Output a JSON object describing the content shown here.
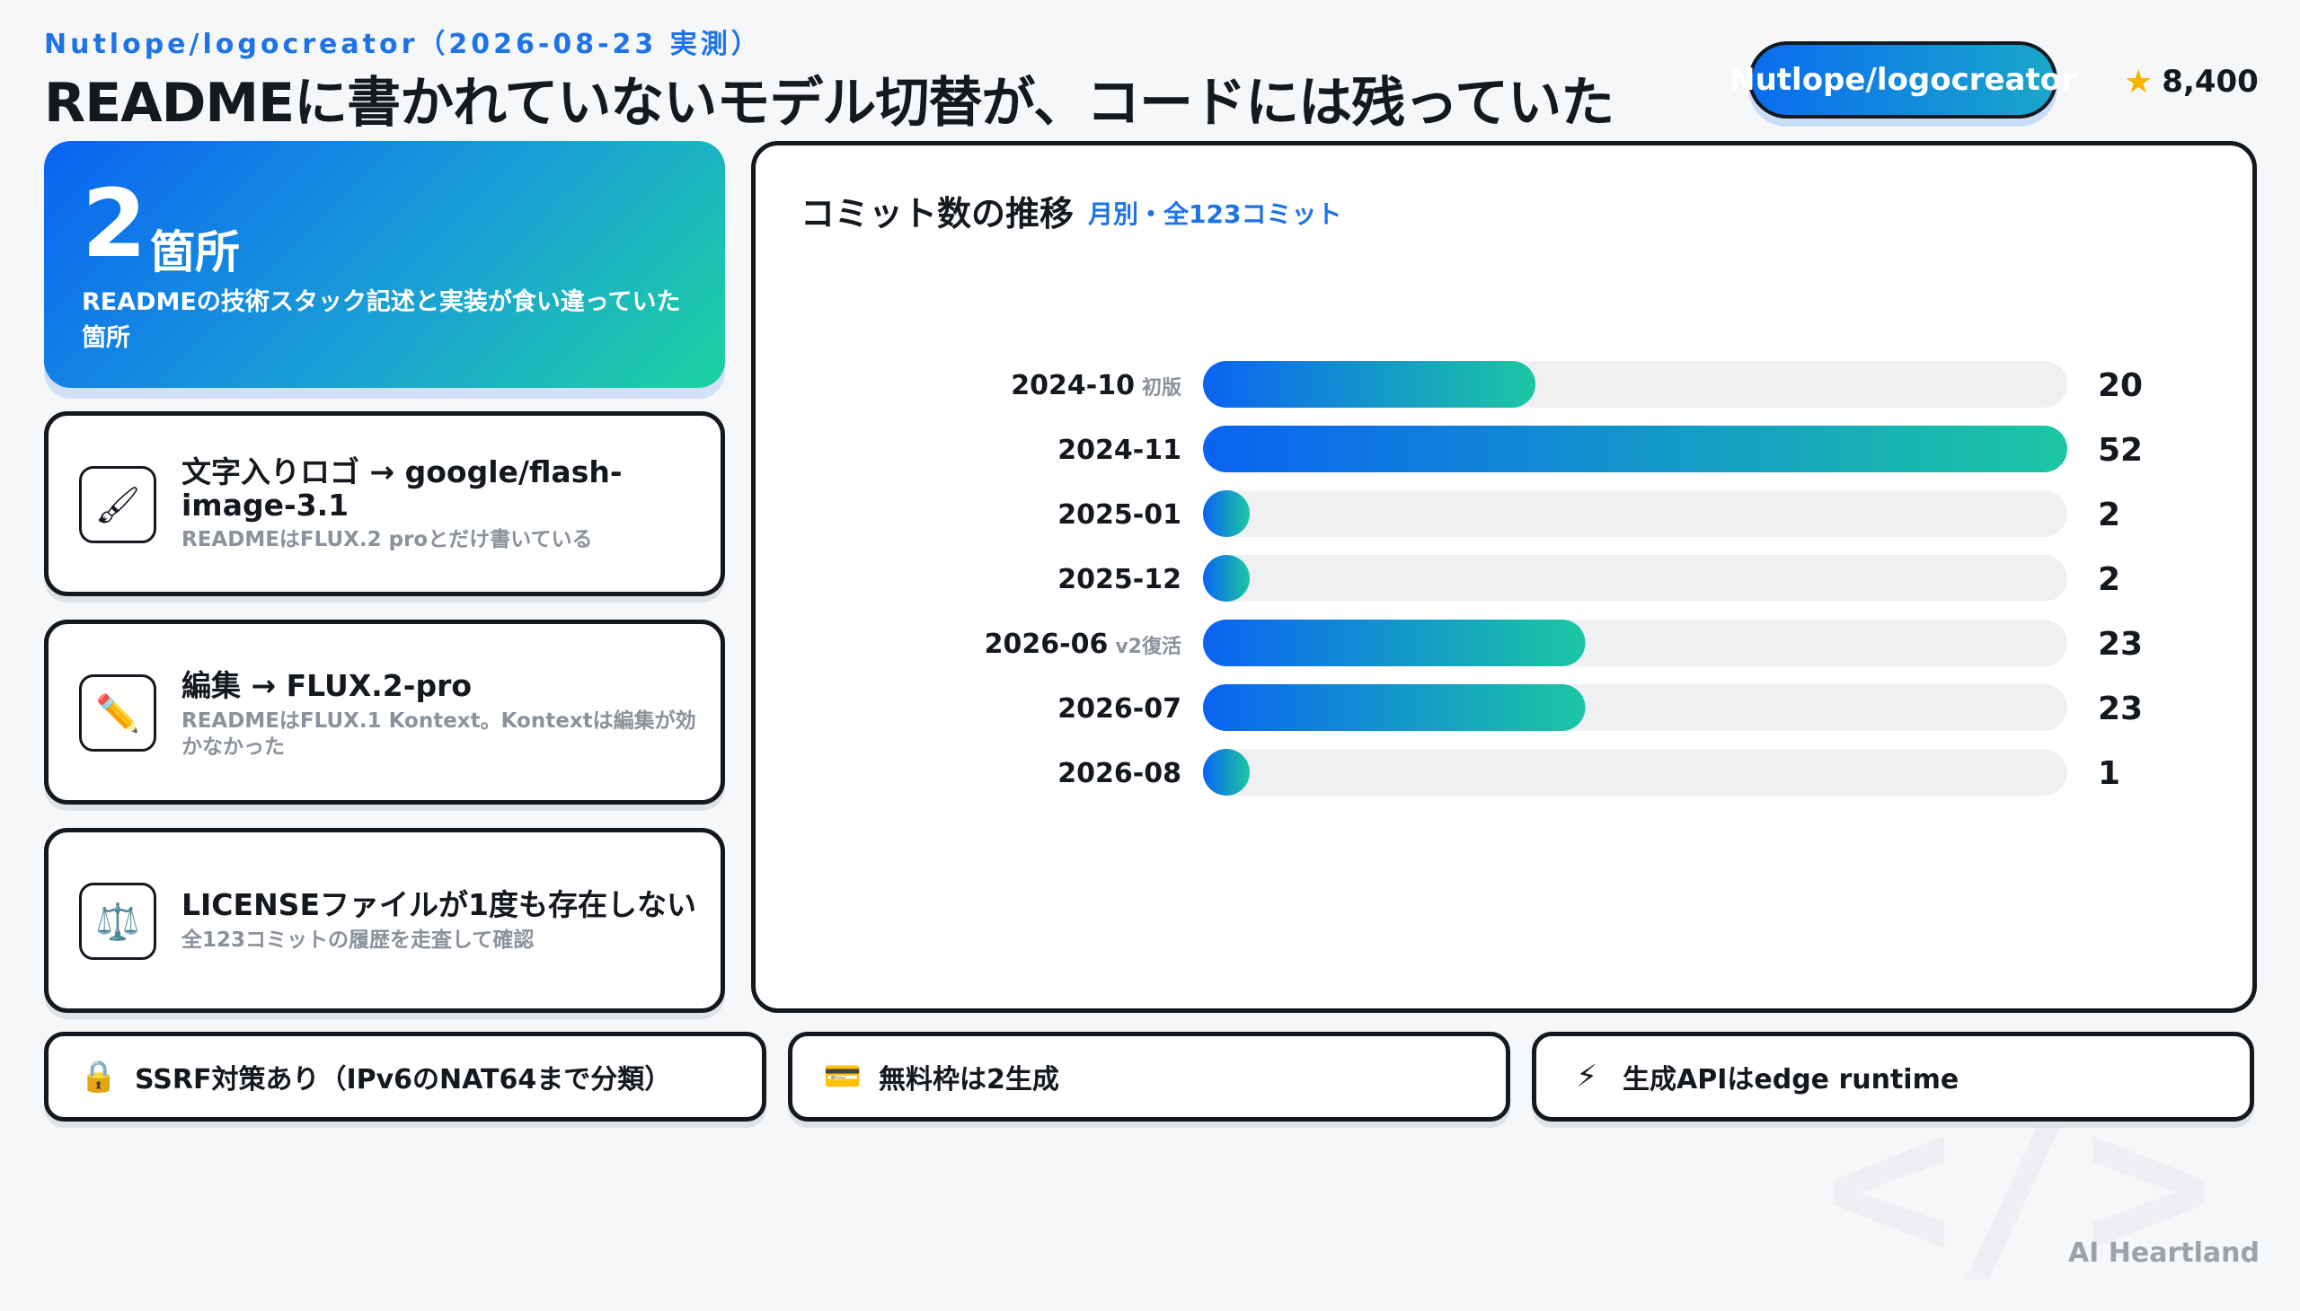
{
  "header": {
    "overline": "Nutlope/logocreator（2026-08-23 実測）",
    "title": "READMEに書かれていないモデル切替が、コードには残っていた",
    "repo_label": "Nutlope/logocreator",
    "star_icon": "star-icon",
    "stars": "8,400"
  },
  "hero": {
    "number": "2",
    "unit": "箇所",
    "description": "READMEの技術スタック記述と実装が食い違っていた箇所"
  },
  "findings": [
    {
      "icon": "paintbrush-icon",
      "glyph": "🖌",
      "title": "文字入りロゴ → google/flash-image-3.1",
      "subtitle": "READMEはFLUX.2 proとだけ書いている"
    },
    {
      "icon": "pencil-icon",
      "glyph": "✏️",
      "title": "編集 → FLUX.2-pro",
      "subtitle": "READMEはFLUX.1 Kontext。Kontextは編集が効かなかった"
    },
    {
      "icon": "scales-icon",
      "glyph": "⚖️",
      "title": "LICENSEファイルが1度も存在しない",
      "subtitle": "全123コミットの履歴を走査して確認"
    }
  ],
  "chart_panel": {
    "title": "コミット数の推移",
    "subtitle": "月別・全123コミット"
  },
  "chart_data": {
    "type": "bar",
    "orientation": "horizontal",
    "title": "コミット数の推移",
    "subtitle": "月別・全123コミット",
    "categories": [
      "2024-10",
      "2024-11",
      "2025-01",
      "2025-12",
      "2026-06",
      "2026-07",
      "2026-08"
    ],
    "annotations": [
      "初版",
      "",
      "",
      "",
      "v2復活",
      "",
      ""
    ],
    "values": [
      20,
      52,
      2,
      2,
      23,
      23,
      1
    ],
    "xlim": [
      0,
      52
    ],
    "grid": false,
    "legend": "none",
    "colors": {
      "bar_start": "#0a63f2",
      "bar_end": "#1cc7a3",
      "track": "#eef0f2"
    }
  },
  "bottom_items": [
    {
      "icon": "lock-icon",
      "glyph": "🔒",
      "label": "SSRF対策あり（IPv6のNAT64まで分類）"
    },
    {
      "icon": "credit-card-icon",
      "glyph": "💳",
      "label": "無料枠は2生成"
    },
    {
      "icon": "lightning-icon",
      "glyph": "⚡",
      "label": "生成APIはedge runtime"
    }
  ],
  "watermark": "</>",
  "brand": "AI Heartland"
}
